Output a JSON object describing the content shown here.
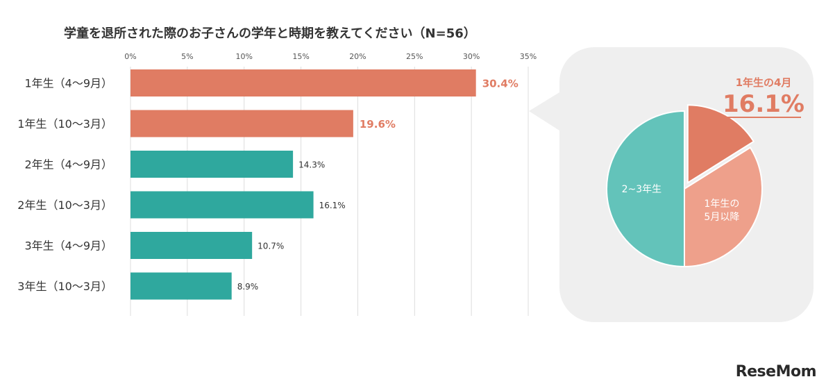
{
  "chart_data": [
    {
      "type": "bar",
      "orientation": "horizontal",
      "title": "学童を退所された際のお子さんの学年と時期を教えてください（N=56）",
      "categories": [
        "1年生（4〜9月）",
        "1年生（10〜3月）",
        "2年生（4〜9月）",
        "2年生（10〜3月）",
        "3年生（4〜9月）",
        "3年生（10〜3月）"
      ],
      "values": [
        30.4,
        19.6,
        14.3,
        16.1,
        10.7,
        8.9
      ],
      "value_labels": [
        "30.4%",
        "19.6%",
        "14.3%",
        "16.1%",
        "10.7%",
        "8.9%"
      ],
      "bar_colors": [
        "#e07c63",
        "#e07c63",
        "#2fa89e",
        "#2fa89e",
        "#2fa89e",
        "#2fa89e"
      ],
      "label_colors": [
        "#e07c63",
        "#e07c63",
        "#333333",
        "#333333",
        "#333333",
        "#333333"
      ],
      "label_bold": [
        true,
        true,
        false,
        false,
        false,
        false
      ],
      "xlim": [
        0,
        35
      ],
      "xticks": [
        0,
        5,
        10,
        15,
        20,
        25,
        30,
        35
      ],
      "xtick_labels": [
        "0%",
        "5%",
        "10%",
        "15%",
        "20%",
        "25%",
        "30%",
        "35%"
      ],
      "xaxis_position": "top",
      "grid": true
    },
    {
      "type": "pie",
      "slices": [
        {
          "label": "1年生の4月",
          "value": 16.1,
          "color": "#e07c63",
          "exploded": true
        },
        {
          "label": "1年生の\n5月以降",
          "value": 33.9,
          "color": "#eea08b",
          "exploded": false
        },
        {
          "label": "2~3年生",
          "value": 50.0,
          "color": "#63c3ba",
          "exploded": false
        }
      ],
      "callout": {
        "label": "1年生の4月",
        "value": "16.1%",
        "color": "#e07c63"
      },
      "start_angle": "12 o'clock",
      "direction": "clockwise",
      "bubble_color": "#efefef"
    }
  ],
  "brand": {
    "logo": "ReseMom"
  }
}
